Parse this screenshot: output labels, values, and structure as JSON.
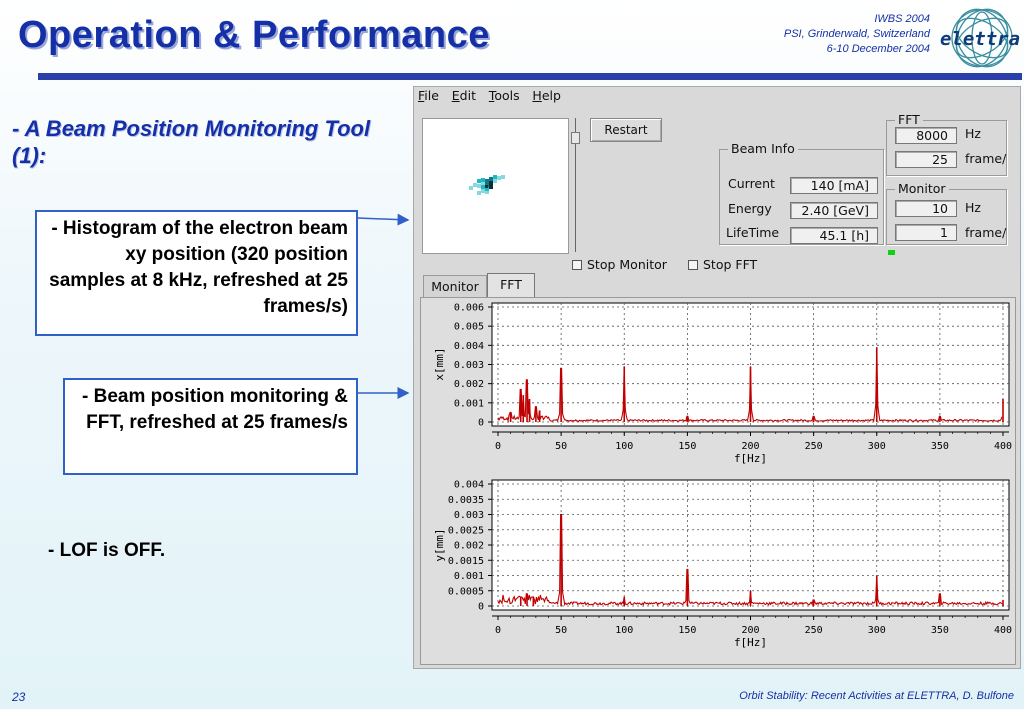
{
  "slide": {
    "title": "Operation & Performance",
    "conference": [
      "IWBS 2004",
      "PSI, Grinderwald, Switzerland",
      "6-10 December 2004"
    ],
    "logo_text": "elettra",
    "subtitle": "- A Beam Position Monitoring Tool (1):",
    "callout1": "- Histogram of the electron beam xy position (320 position samples at 8 kHz, refreshed at 25 frames/s)",
    "callout2": "- Beam position monitoring & FFT, refreshed at 25 frames/s",
    "note": "- LOF is OFF.",
    "page_number": "23",
    "footer": "Orbit Stability: Recent Activities at ELETTRA, D. Bulfone"
  },
  "app": {
    "menu": [
      {
        "key": "F",
        "rest": "ile"
      },
      {
        "key": "E",
        "rest": "dit"
      },
      {
        "key": "T",
        "rest": "ools"
      },
      {
        "key": "H",
        "rest": "elp"
      }
    ],
    "restart_label": "Restart",
    "beam_info": {
      "title": "Beam Info",
      "current_label": "Current",
      "current_value": "140 [mA]",
      "energy_label": "Energy",
      "energy_value": "2.40 [GeV]",
      "lifetime_label": "LifeTime",
      "lifetime_value": "45.1 [h]"
    },
    "fft": {
      "title": "FFT",
      "rate_value": "8000",
      "rate_unit": "Hz",
      "frames_value": "25",
      "frames_unit": "frame/"
    },
    "monitor": {
      "title": "Monitor",
      "rate_value": "10",
      "rate_unit": "Hz",
      "frames_value": "1",
      "frames_unit": "frame/"
    },
    "stop_monitor_label": "Stop Monitor",
    "stop_fft_label": "Stop FFT",
    "tabs": [
      "Monitor",
      "FFT"
    ],
    "active_tab": "FFT",
    "status_color": "#10d010"
  },
  "chart_data": [
    {
      "type": "line",
      "xlabel": "f[Hz]",
      "ylabel": "x[mm]",
      "xlim": [
        0,
        400
      ],
      "ylim": [
        0,
        0.006
      ],
      "xticks": [
        "0",
        "50",
        "100",
        "150",
        "200",
        "250",
        "300",
        "350",
        "400"
      ],
      "yticks": [
        "0",
        "0.001",
        "0.002",
        "0.003",
        "0.004",
        "0.005",
        "0.006"
      ],
      "grid": true,
      "color": "#c00000",
      "baseline": 0.0001,
      "peaks": [
        [
          10,
          0.0005
        ],
        [
          18,
          0.0017
        ],
        [
          20,
          0.0014
        ],
        [
          23,
          0.0022
        ],
        [
          25,
          0.0012
        ],
        [
          30,
          0.0008
        ],
        [
          33,
          0.0006
        ],
        [
          50,
          0.0028
        ],
        [
          100,
          0.0029
        ],
        [
          150,
          0.0003
        ],
        [
          200,
          0.0029
        ],
        [
          250,
          0.0003
        ],
        [
          300,
          0.0039
        ],
        [
          350,
          0.0003
        ],
        [
          400,
          0.0012
        ]
      ]
    },
    {
      "type": "line",
      "xlabel": "f[Hz]",
      "ylabel": "y[mm]",
      "xlim": [
        0,
        400
      ],
      "ylim": [
        0,
        0.004
      ],
      "xticks": [
        "0",
        "50",
        "100",
        "150",
        "200",
        "250",
        "300",
        "350",
        "400"
      ],
      "yticks": [
        "0",
        "0.0005",
        "0.001",
        "0.0015",
        "0.002",
        "0.0025",
        "0.003",
        "0.0035",
        "0.004"
      ],
      "grid": true,
      "color": "#c00000",
      "baseline": 0.0001,
      "peaks": [
        [
          18,
          0.0003
        ],
        [
          23,
          0.0004
        ],
        [
          28,
          0.0003
        ],
        [
          50,
          0.003
        ],
        [
          100,
          0.0003
        ],
        [
          150,
          0.0012
        ],
        [
          200,
          0.0005
        ],
        [
          250,
          0.0002
        ],
        [
          300,
          0.001
        ],
        [
          350,
          0.0004
        ],
        [
          400,
          0.0002
        ]
      ]
    }
  ]
}
